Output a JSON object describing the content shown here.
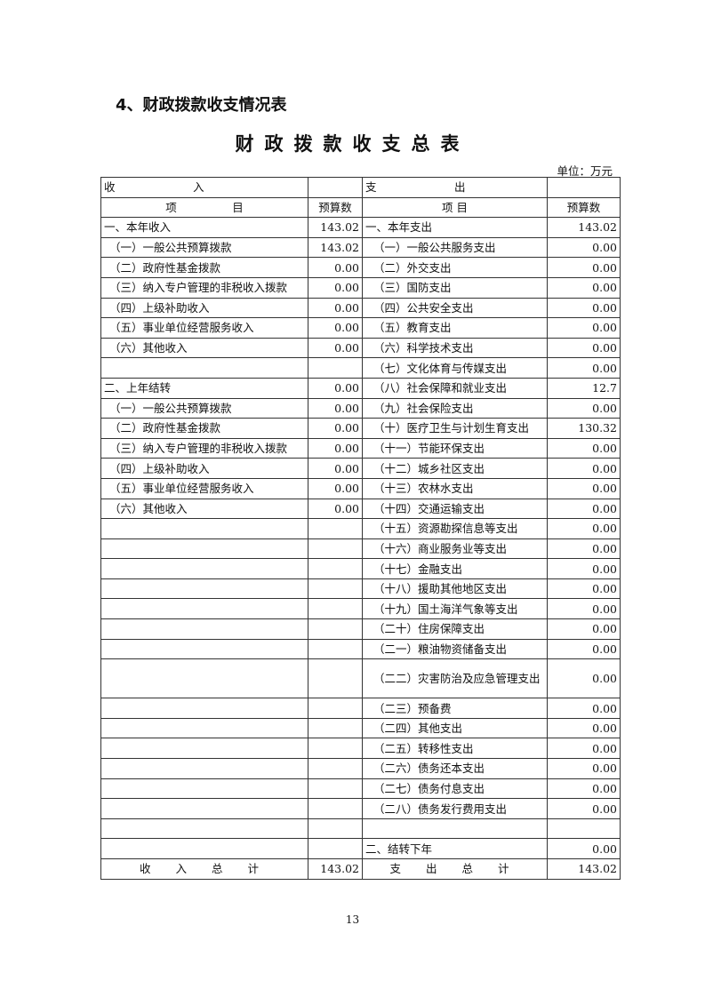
{
  "section_title": "4、财政拨款收支情况表",
  "table_title": "财政拨款收支总表",
  "unit": "单位：万元",
  "header": {
    "income_group": "收　　　　　　　入",
    "expense_group": "支　　　　　　　出",
    "item": "项　　　　　目",
    "item_right": "项 目",
    "budget": "预算数"
  },
  "rows": [
    {
      "in": "一、本年收入",
      "in_v": "143.02",
      "out": "一、本年支出",
      "out_v": "143.02",
      "in_ind": 0,
      "out_ind": 0
    },
    {
      "in": "（一）一般公共预算拨款",
      "in_v": "143.02",
      "out": "（一）一般公共服务支出",
      "out_v": "0.00",
      "in_ind": 1,
      "out_ind": 1
    },
    {
      "in": "（二）政府性基金拨款",
      "in_v": "0.00",
      "out": "（二）外交支出",
      "out_v": "0.00",
      "in_ind": 1,
      "out_ind": 1
    },
    {
      "in": "（三）纳入专户管理的非税收入拨款",
      "in_v": "0.00",
      "out": "（三）国防支出",
      "out_v": "0.00",
      "in_ind": 1,
      "out_ind": 1
    },
    {
      "in": "（四）上级补助收入",
      "in_v": "0.00",
      "out": "（四）公共安全支出",
      "out_v": "0.00",
      "in_ind": 1,
      "out_ind": 1
    },
    {
      "in": "（五）事业单位经营服务收入",
      "in_v": "0.00",
      "out": "（五）教育支出",
      "out_v": "0.00",
      "in_ind": 1,
      "out_ind": 1
    },
    {
      "in": "（六）其他收入",
      "in_v": "0.00",
      "out": "（六）科学技术支出",
      "out_v": "0.00",
      "in_ind": 1,
      "out_ind": 1
    },
    {
      "in": "",
      "in_v": "",
      "out": "（七）文化体育与传媒支出",
      "out_v": "0.00",
      "in_ind": 1,
      "out_ind": 1
    },
    {
      "in": "二、上年结转",
      "in_v": "0.00",
      "out": "（八）社会保障和就业支出",
      "out_v": "12.7",
      "in_ind": 0,
      "out_ind": 1
    },
    {
      "in": "（一）一般公共预算拨款",
      "in_v": "0.00",
      "out": "（九）社会保险支出",
      "out_v": "0.00",
      "in_ind": 1,
      "out_ind": 1
    },
    {
      "in": "（二）政府性基金拨款",
      "in_v": "0.00",
      "out": "（十）医疗卫生与计划生育支出",
      "out_v": "130.32",
      "in_ind": 1,
      "out_ind": 1
    },
    {
      "in": "（三）纳入专户管理的非税收入拨款",
      "in_v": "0.00",
      "out": "（十一）节能环保支出",
      "out_v": "0.00",
      "in_ind": 1,
      "out_ind": 1
    },
    {
      "in": "（四）上级补助收入",
      "in_v": "0.00",
      "out": "（十二）城乡社区支出",
      "out_v": "0.00",
      "in_ind": 1,
      "out_ind": 1
    },
    {
      "in": "（五）事业单位经营服务收入",
      "in_v": "0.00",
      "out": "（十三）农林水支出",
      "out_v": "0.00",
      "in_ind": 1,
      "out_ind": 1
    },
    {
      "in": "（六）其他收入",
      "in_v": "0.00",
      "out": "（十四）交通运输支出",
      "out_v": "0.00",
      "in_ind": 1,
      "out_ind": 1
    },
    {
      "in": "",
      "in_v": "",
      "out": "（十五）资源勘探信息等支出",
      "out_v": "0.00",
      "in_ind": 1,
      "out_ind": 1
    },
    {
      "in": "",
      "in_v": "",
      "out": "（十六）商业服务业等支出",
      "out_v": "0.00",
      "in_ind": 1,
      "out_ind": 1
    },
    {
      "in": "",
      "in_v": "",
      "out": "（十七）金融支出",
      "out_v": "0.00",
      "in_ind": 1,
      "out_ind": 1
    },
    {
      "in": "",
      "in_v": "",
      "out": "（十八）援助其他地区支出",
      "out_v": "0.00",
      "in_ind": 1,
      "out_ind": 1
    },
    {
      "in": "",
      "in_v": "",
      "out": "（十九）国土海洋气象等支出",
      "out_v": "0.00",
      "in_ind": 1,
      "out_ind": 1
    },
    {
      "in": "",
      "in_v": "",
      "out": "（二十）住房保障支出",
      "out_v": "0.00",
      "in_ind": 1,
      "out_ind": 1
    },
    {
      "in": "",
      "in_v": "",
      "out": "（二一）粮油物资储备支出",
      "out_v": "0.00",
      "in_ind": 1,
      "out_ind": 1
    },
    {
      "in": "",
      "in_v": "",
      "out": "（二二）灾害防治及应急管理支出",
      "out_v": "0.00",
      "in_ind": 1,
      "out_ind": 1,
      "wrap": true
    },
    {
      "in": "",
      "in_v": "",
      "out": "（二三）预备费",
      "out_v": "0.00",
      "in_ind": 1,
      "out_ind": 1
    },
    {
      "in": "",
      "in_v": "",
      "out": "（二四）其他支出",
      "out_v": "0.00",
      "in_ind": 1,
      "out_ind": 1
    },
    {
      "in": "",
      "in_v": "",
      "out": "（二五）转移性支出",
      "out_v": "0.00",
      "in_ind": 1,
      "out_ind": 1
    },
    {
      "in": "",
      "in_v": "",
      "out": "（二六）债务还本支出",
      "out_v": "0.00",
      "in_ind": 1,
      "out_ind": 1
    },
    {
      "in": "",
      "in_v": "",
      "out": "（二七）债务付息支出",
      "out_v": "0.00",
      "in_ind": 1,
      "out_ind": 1
    },
    {
      "in": "",
      "in_v": "",
      "out": "（二八）债务发行费用支出",
      "out_v": "0.00",
      "in_ind": 1,
      "out_ind": 1
    },
    {
      "in": "",
      "in_v": "",
      "out": "",
      "out_v": "",
      "in_ind": 1,
      "out_ind": 1
    },
    {
      "in": "",
      "in_v": "",
      "out": "二、结转下年",
      "out_v": "0.00",
      "in_ind": 1,
      "out_ind": 0
    }
  ],
  "totals": {
    "income_label": "收 入 总 计",
    "income_value": "143.02",
    "expense_label": "支 出 总 计",
    "expense_value": "143.02"
  },
  "page_number": "13"
}
